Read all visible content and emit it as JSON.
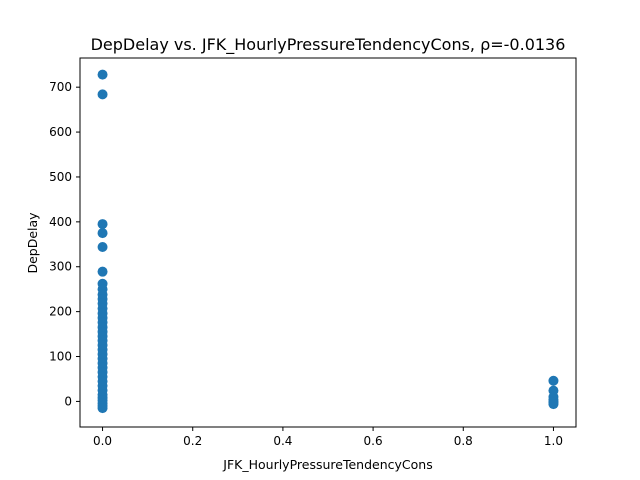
{
  "chart_data": {
    "type": "scatter",
    "title": "DepDelay vs. JFK_HourlyPressureTendencyCons, ρ=-0.0136",
    "xlabel": "JFK_HourlyPressureTendencyCons",
    "ylabel": "DepDelay",
    "xlim": [
      -0.05,
      1.05
    ],
    "ylim": [
      -57,
      765
    ],
    "xticks": [
      0.0,
      0.2,
      0.4,
      0.6,
      0.8,
      1.0
    ],
    "xtick_labels": [
      "0.0",
      "0.2",
      "0.4",
      "0.6",
      "0.8",
      "1.0"
    ],
    "yticks": [
      0,
      100,
      200,
      300,
      400,
      500,
      600,
      700
    ],
    "ytick_labels": [
      "0",
      "100",
      "200",
      "300",
      "400",
      "500",
      "600",
      "700"
    ],
    "grid": false,
    "marker_color": "#1f77b4",
    "series": [
      {
        "points": [
          [
            0,
            728
          ],
          [
            0,
            684
          ],
          [
            0,
            395
          ],
          [
            0,
            375
          ],
          [
            0,
            344
          ],
          [
            0,
            289
          ],
          [
            0,
            262
          ],
          [
            0,
            250
          ],
          [
            0,
            238
          ],
          [
            0,
            228
          ],
          [
            0,
            218
          ],
          [
            0,
            207
          ],
          [
            0,
            196
          ],
          [
            0,
            186
          ],
          [
            0,
            176
          ],
          [
            0,
            165
          ],
          [
            0,
            155
          ],
          [
            0,
            145
          ],
          [
            0,
            135
          ],
          [
            0,
            125
          ],
          [
            0,
            115
          ],
          [
            0,
            105
          ],
          [
            0,
            95
          ],
          [
            0,
            85
          ],
          [
            0,
            75
          ],
          [
            0,
            65
          ],
          [
            0,
            55
          ],
          [
            0,
            45
          ],
          [
            0,
            35
          ],
          [
            0,
            25
          ],
          [
            0,
            15
          ],
          [
            0,
            8
          ],
          [
            0,
            2
          ],
          [
            0,
            -4
          ],
          [
            0,
            -10
          ],
          [
            0,
            -15
          ],
          [
            1,
            46
          ],
          [
            1,
            24
          ],
          [
            1,
            10
          ],
          [
            1,
            4
          ],
          [
            1,
            0
          ],
          [
            1,
            -3
          ],
          [
            1,
            -6
          ]
        ]
      }
    ]
  }
}
